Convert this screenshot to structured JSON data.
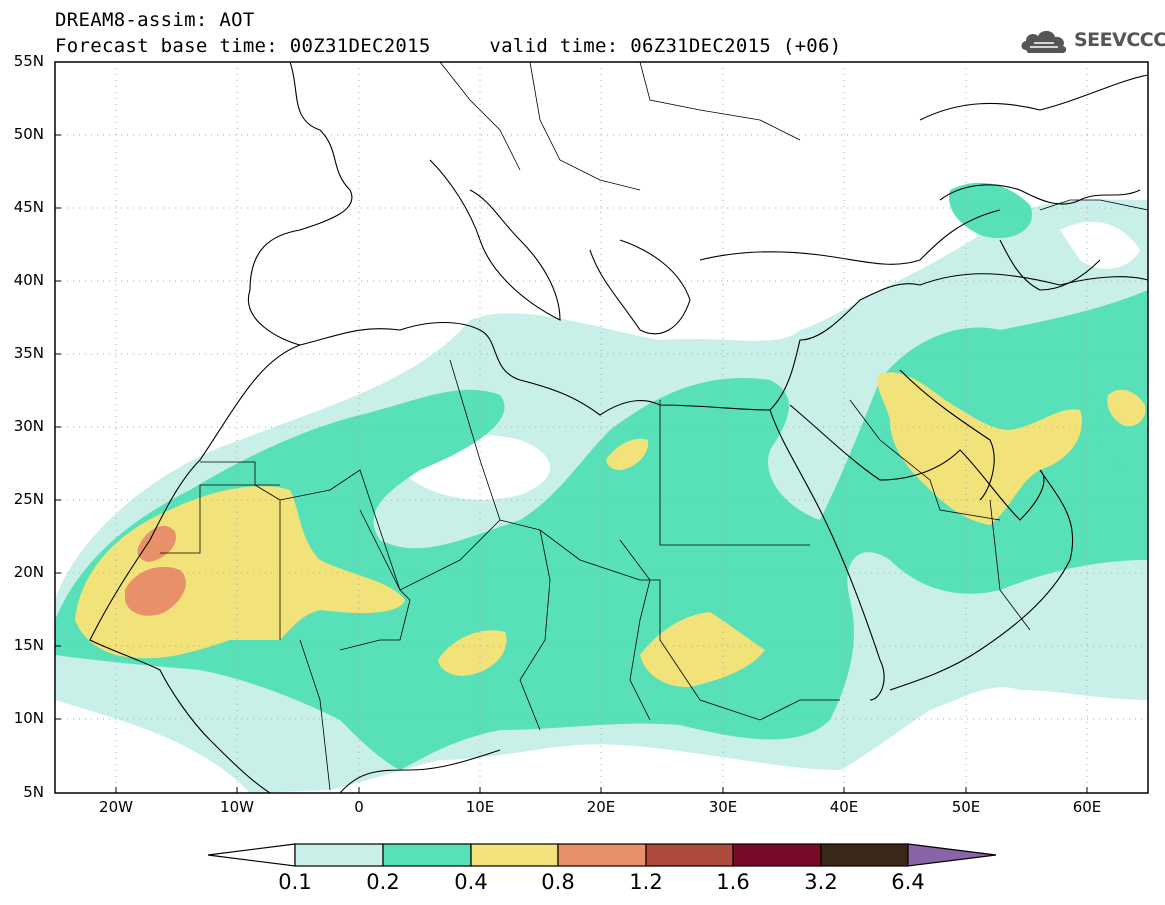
{
  "title": {
    "line1": "DREAM8-assim: AOT",
    "base_label": "Forecast base time: 00Z31DEC2015",
    "valid_label": "valid time: 06Z31DEC2015 (+06)"
  },
  "logo": {
    "text": "SEEVCCC",
    "icon": "cloud-icon"
  },
  "map": {
    "lon_range": [
      -25,
      65
    ],
    "lat_range": [
      5,
      55
    ],
    "lat_labels": [
      "55N",
      "50N",
      "45N",
      "40N",
      "35N",
      "30N",
      "25N",
      "20N",
      "15N",
      "10N",
      "5N"
    ],
    "lon_labels": [
      "20W",
      "10W",
      "0",
      "10E",
      "20E",
      "30E",
      "40E",
      "50E",
      "60E"
    ],
    "grid": "dotted"
  },
  "colorbar": {
    "levels": [
      "0.1",
      "0.2",
      "0.4",
      "0.8",
      "1.2",
      "1.6",
      "3.2",
      "6.4"
    ],
    "colors": [
      "#ffffff",
      "#c8f0e8",
      "#58e0b8",
      "#f2e27a",
      "#e8906a",
      "#b04a3c",
      "#7a0a28",
      "#3a2818",
      "#8a64a8"
    ]
  }
}
